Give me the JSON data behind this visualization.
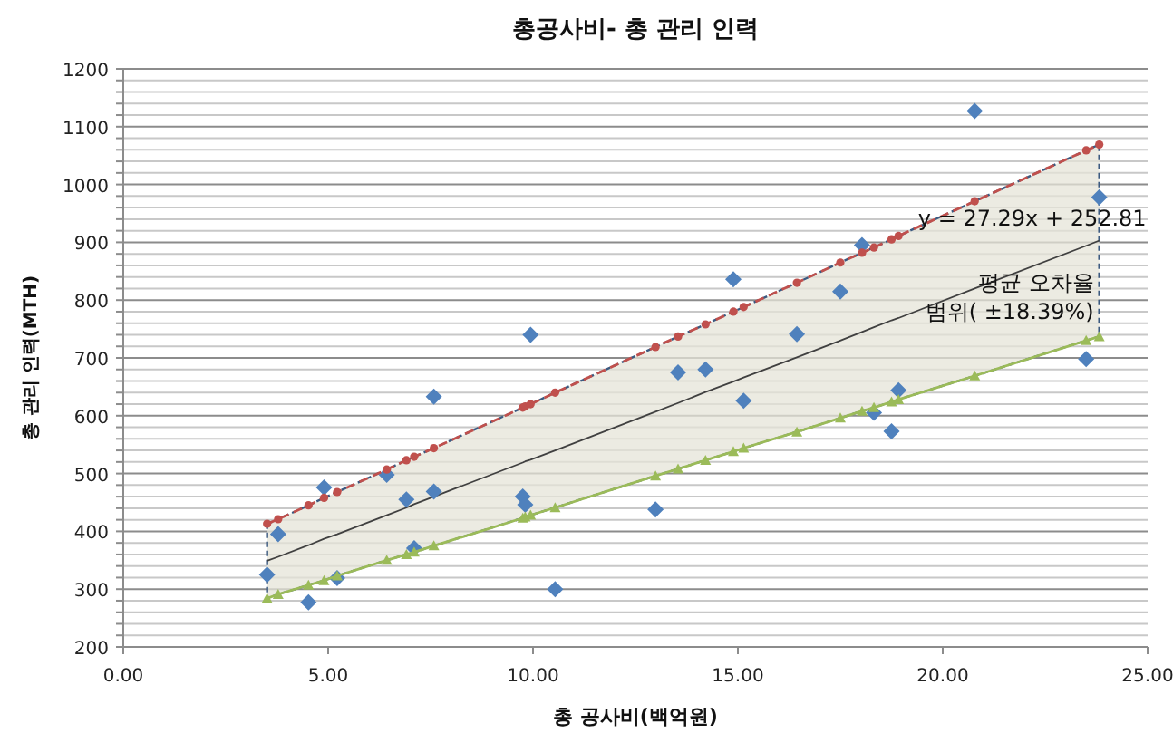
{
  "chart_data": {
    "type": "scatter",
    "title": "총공사비- 총 관리 인력",
    "xlabel": "총 공사비(백억원)",
    "ylabel": "총 관리 인력(MTH)",
    "xlim": [
      0,
      25
    ],
    "xticks": [
      {
        "value": 0,
        "label": "0.00"
      },
      {
        "value": 5,
        "label": "5.00"
      },
      {
        "value": 10,
        "label": "10.00"
      },
      {
        "value": 15,
        "label": "15.00"
      },
      {
        "value": 20,
        "label": "20.00"
      },
      {
        "value": 25,
        "label": "25.00"
      }
    ],
    "ylim": [
      200,
      1200
    ],
    "yticks": [
      200,
      {
        "value": 220,
        "label": null
      },
      {
        "value": 240,
        "label": null
      },
      {
        "value": 260,
        "label": null
      },
      {
        "value": 280,
        "label": null
      },
      300,
      {
        "value": 320,
        "label": null
      },
      {
        "value": 340,
        "label": null
      },
      {
        "value": 360,
        "label": null
      },
      {
        "value": 380,
        "label": null
      },
      400,
      {
        "value": 420,
        "label": null
      },
      {
        "value": 440,
        "label": null
      },
      {
        "value": 460,
        "label": null
      },
      {
        "value": 480,
        "label": null
      },
      500,
      {
        "value": 520,
        "label": null
      },
      {
        "value": 540,
        "label": null
      },
      {
        "value": 560,
        "label": null
      },
      {
        "value": 580,
        "label": null
      },
      600,
      {
        "value": 620,
        "label": null
      },
      {
        "value": 640,
        "label": null
      },
      {
        "value": 660,
        "label": null
      },
      {
        "value": 680,
        "label": null
      },
      700,
      {
        "value": 720,
        "label": null
      },
      {
        "value": 740,
        "label": null
      },
      {
        "value": 760,
        "label": null
      },
      {
        "value": 780,
        "label": null
      },
      800,
      {
        "value": 820,
        "label": null
      },
      {
        "value": 840,
        "label": null
      },
      {
        "value": 860,
        "label": null
      },
      {
        "value": 880,
        "label": null
      },
      900,
      {
        "value": 920,
        "label": null
      },
      {
        "value": 940,
        "label": null
      },
      {
        "value": 960,
        "label": null
      },
      {
        "value": 980,
        "label": null
      },
      1000,
      {
        "value": 1020,
        "label": null
      },
      {
        "value": 1040,
        "label": null
      },
      {
        "value": 1060,
        "label": null
      },
      {
        "value": 1080,
        "label": null
      },
      1100,
      {
        "value": 1120,
        "label": null
      },
      {
        "value": 1140,
        "label": null
      },
      {
        "value": 1160,
        "label": null
      },
      {
        "value": 1180,
        "label": null
      },
      1200
    ],
    "grid": "y",
    "series": [
      {
        "type": "line",
        "color": "#404040",
        "marker": "none",
        "x": [
          3.51,
          3.78,
          4.52,
          4.9,
          5.22,
          6.43,
          6.91,
          7.1,
          7.58,
          9.75,
          9.81,
          9.94,
          10.54,
          12.99,
          13.54,
          14.21,
          14.89,
          15.14,
          16.44,
          17.5,
          18.03,
          18.32,
          18.75,
          18.92,
          20.78,
          23.5,
          23.82
        ],
        "values": [
          349,
          356,
          376,
          387,
          395,
          428,
          441,
          447,
          460,
          519,
          521,
          524,
          540,
          607,
          622,
          641,
          659,
          666,
          701,
          730,
          745,
          753,
          765,
          769,
          820,
          894,
          903
        ],
        "lower": [
          284,
          291,
          307,
          315,
          323,
          350,
          360,
          364,
          375,
          423,
          425,
          428,
          441,
          496,
          508,
          523,
          538,
          544,
          572,
          596,
          608,
          614,
          624,
          628,
          669,
          730,
          737
        ],
        "upper": [
          413,
          421,
          445,
          458,
          468,
          507,
          523,
          529,
          544,
          614,
          616,
          620,
          640,
          719,
          737,
          758,
          780,
          788,
          830,
          865,
          882,
          891,
          905,
          911,
          971,
          1059,
          1069
        ]
      },
      {
        "type": "line",
        "line_style": "dashed",
        "color": "#c0504d",
        "marker": "circle",
        "x": [
          3.51,
          3.78,
          4.52,
          4.9,
          5.22,
          6.43,
          6.91,
          7.1,
          7.58,
          9.75,
          9.81,
          9.94,
          10.54,
          12.99,
          13.54,
          14.21,
          14.89,
          15.14,
          16.44,
          17.5,
          18.03,
          18.32,
          18.75,
          18.92,
          20.78,
          23.5,
          23.82
        ],
        "values": [
          413,
          421,
          445,
          458,
          468,
          507,
          523,
          529,
          544,
          614,
          616,
          620,
          640,
          719,
          737,
          758,
          780,
          788,
          830,
          865,
          882,
          891,
          905,
          911,
          971,
          1059,
          1069
        ]
      },
      {
        "type": "line",
        "line_style": "solid",
        "color": "#9bbb59",
        "marker": "triangle",
        "x": [
          3.51,
          3.78,
          4.52,
          4.9,
          5.22,
          6.43,
          6.91,
          7.1,
          7.58,
          9.75,
          9.81,
          9.94,
          10.54,
          12.99,
          13.54,
          14.21,
          14.89,
          15.14,
          16.44,
          17.5,
          18.03,
          18.32,
          18.75,
          18.92,
          20.78,
          23.5,
          23.82
        ],
        "values": [
          284,
          291,
          307,
          315,
          323,
          350,
          360,
          364,
          375,
          423,
          425,
          428,
          441,
          496,
          508,
          523,
          538,
          544,
          572,
          596,
          608,
          614,
          624,
          628,
          669,
          730,
          737
        ]
      },
      {
        "type": "scatter",
        "color": "#4f81bd",
        "marker": "diamond",
        "x": [
          3.51,
          3.78,
          4.52,
          4.9,
          5.22,
          6.43,
          6.91,
          7.1,
          7.58,
          7.58,
          9.75,
          9.81,
          9.94,
          10.54,
          12.99,
          13.54,
          14.21,
          14.89,
          15.14,
          16.44,
          17.5,
          18.03,
          18.32,
          18.75,
          18.92,
          20.78,
          23.5,
          23.82
        ],
        "values": [
          325,
          395,
          277,
          476,
          319,
          498,
          455,
          371,
          633,
          469,
          460,
          446,
          740,
          300,
          438,
          675,
          680,
          836,
          626,
          741,
          815,
          895,
          605,
          573,
          644,
          1127,
          698,
          978
        ]
      }
    ],
    "annotations": [
      {
        "text": "y = 27.29x + 252.81",
        "x": 23.82,
        "y": 903
      },
      {
        "text": "평균 오차율\n범위( ±18.39%)",
        "x": 23.82,
        "y": 780
      }
    ]
  }
}
